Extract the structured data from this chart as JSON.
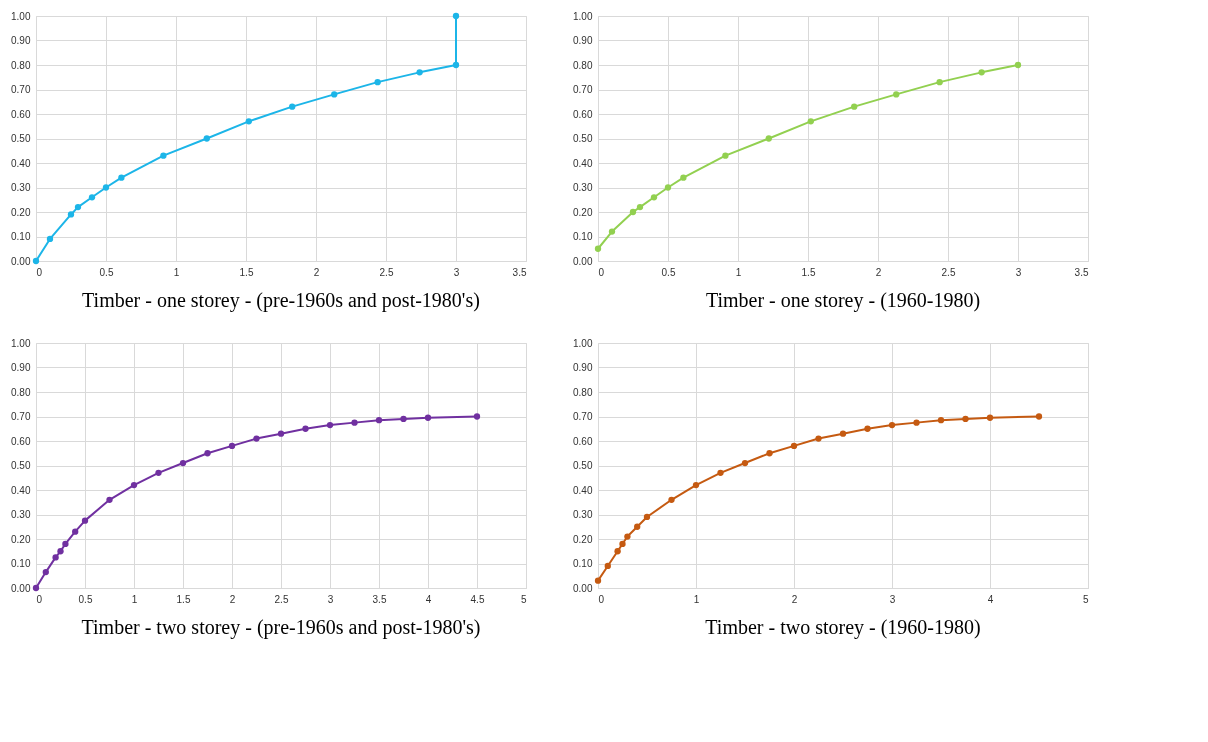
{
  "chart_data": [
    {
      "type": "line",
      "title": "Timber - one storey - (pre-1960s and post-1980's)",
      "marker": "circle",
      "grid": true,
      "xlim": [
        0,
        3.5
      ],
      "xticks": [
        0,
        0.5,
        1,
        1.5,
        2,
        2.5,
        3,
        3.5
      ],
      "ylim": [
        0,
        1
      ],
      "yticks": [
        {
          "value": 0,
          "label": "0.00"
        },
        {
          "value": 0.1,
          "label": "0.10"
        },
        {
          "value": 0.2,
          "label": "0.20"
        },
        {
          "value": 0.3,
          "label": "0.30"
        },
        {
          "value": 0.4,
          "label": "0.40"
        },
        {
          "value": 0.5,
          "label": "0.50"
        },
        {
          "value": 0.6,
          "label": "0.60"
        },
        {
          "value": 0.7,
          "label": "0.70"
        },
        {
          "value": 0.8,
          "label": "0.80"
        },
        {
          "value": 0.9,
          "label": "0.90"
        },
        {
          "value": 1,
          "label": "1.00"
        }
      ],
      "series": [
        {
          "color": "#1cb5e8",
          "x": [
            0,
            0.1,
            0.25,
            0.3,
            0.4,
            0.5,
            0.61,
            0.91,
            1.22,
            1.52,
            1.83,
            2.13,
            2.44,
            2.74,
            3,
            3
          ],
          "values": [
            0,
            0.09,
            0.19,
            0.22,
            0.26,
            0.3,
            0.34,
            0.43,
            0.5,
            0.57,
            0.63,
            0.68,
            0.73,
            0.77,
            0.8,
            1.0
          ]
        }
      ]
    },
    {
      "type": "line",
      "title": "Timber - one storey -  (1960-1980)",
      "marker": "circle",
      "grid": true,
      "xlim": [
        0,
        3.5
      ],
      "xticks": [
        0,
        0.5,
        1,
        1.5,
        2,
        2.5,
        3,
        3.5
      ],
      "ylim": [
        0,
        1
      ],
      "yticks": [
        {
          "value": 0,
          "label": "0.00"
        },
        {
          "value": 0.1,
          "label": "0.10"
        },
        {
          "value": 0.2,
          "label": "0.20"
        },
        {
          "value": 0.3,
          "label": "0.30"
        },
        {
          "value": 0.4,
          "label": "0.40"
        },
        {
          "value": 0.5,
          "label": "0.50"
        },
        {
          "value": 0.6,
          "label": "0.60"
        },
        {
          "value": 0.7,
          "label": "0.70"
        },
        {
          "value": 0.8,
          "label": "0.80"
        },
        {
          "value": 0.9,
          "label": "0.90"
        },
        {
          "value": 1,
          "label": "1.00"
        }
      ],
      "series": [
        {
          "color": "#92d050",
          "x": [
            0,
            0.1,
            0.25,
            0.3,
            0.4,
            0.5,
            0.61,
            0.91,
            1.22,
            1.52,
            1.83,
            2.13,
            2.44,
            2.74,
            3
          ],
          "values": [
            0.05,
            0.12,
            0.2,
            0.22,
            0.26,
            0.3,
            0.34,
            0.43,
            0.5,
            0.57,
            0.63,
            0.68,
            0.73,
            0.77,
            0.8
          ]
        }
      ]
    },
    {
      "type": "line",
      "title": "Timber - two storey - (pre-1960s and post-1980's)",
      "marker": "circle",
      "grid": true,
      "xlim": [
        0,
        5
      ],
      "xticks": [
        0,
        0.5,
        1,
        1.5,
        2,
        2.5,
        3,
        3.5,
        4,
        4.5,
        5
      ],
      "ylim": [
        0,
        1
      ],
      "yticks": [
        {
          "value": 0,
          "label": "0.00"
        },
        {
          "value": 0.1,
          "label": "0.10"
        },
        {
          "value": 0.2,
          "label": "0.20"
        },
        {
          "value": 0.3,
          "label": "0.30"
        },
        {
          "value": 0.4,
          "label": "0.40"
        },
        {
          "value": 0.5,
          "label": "0.50"
        },
        {
          "value": 0.6,
          "label": "0.60"
        },
        {
          "value": 0.7,
          "label": "0.70"
        },
        {
          "value": 0.8,
          "label": "0.80"
        },
        {
          "value": 0.9,
          "label": "0.90"
        },
        {
          "value": 1,
          "label": "1.00"
        }
      ],
      "series": [
        {
          "color": "#7030a0",
          "x": [
            0,
            0.1,
            0.2,
            0.25,
            0.3,
            0.4,
            0.5,
            0.75,
            1,
            1.25,
            1.5,
            1.75,
            2,
            2.25,
            2.5,
            2.75,
            3,
            3.25,
            3.5,
            3.75,
            4,
            4.5
          ],
          "values": [
            0,
            0.065,
            0.125,
            0.15,
            0.18,
            0.23,
            0.275,
            0.36,
            0.42,
            0.47,
            0.51,
            0.55,
            0.58,
            0.61,
            0.63,
            0.65,
            0.665,
            0.675,
            0.685,
            0.69,
            0.695,
            0.7
          ]
        }
      ]
    },
    {
      "type": "line",
      "title": "Timber - two storey -  (1960-1980)",
      "marker": "circle",
      "grid": true,
      "xlim": [
        0,
        5
      ],
      "xticks": [
        0,
        1,
        2,
        3,
        4,
        5
      ],
      "ylim": [
        0,
        1
      ],
      "yticks": [
        {
          "value": 0,
          "label": "0.00"
        },
        {
          "value": 0.1,
          "label": "0.10"
        },
        {
          "value": 0.2,
          "label": "0.20"
        },
        {
          "value": 0.3,
          "label": "0.30"
        },
        {
          "value": 0.4,
          "label": "0.40"
        },
        {
          "value": 0.5,
          "label": "0.50"
        },
        {
          "value": 0.6,
          "label": "0.60"
        },
        {
          "value": 0.7,
          "label": "0.70"
        },
        {
          "value": 0.8,
          "label": "0.80"
        },
        {
          "value": 0.9,
          "label": "0.90"
        },
        {
          "value": 1,
          "label": "1.00"
        }
      ],
      "series": [
        {
          "color": "#c55a11",
          "x": [
            0,
            0.1,
            0.2,
            0.25,
            0.3,
            0.4,
            0.5,
            0.75,
            1,
            1.25,
            1.5,
            1.75,
            2,
            2.25,
            2.5,
            2.75,
            3,
            3.25,
            3.5,
            3.75,
            4,
            4.5
          ],
          "values": [
            0.03,
            0.09,
            0.15,
            0.18,
            0.21,
            0.25,
            0.29,
            0.36,
            0.42,
            0.47,
            0.51,
            0.55,
            0.58,
            0.61,
            0.63,
            0.65,
            0.665,
            0.675,
            0.685,
            0.69,
            0.695,
            0.7
          ]
        }
      ]
    }
  ]
}
